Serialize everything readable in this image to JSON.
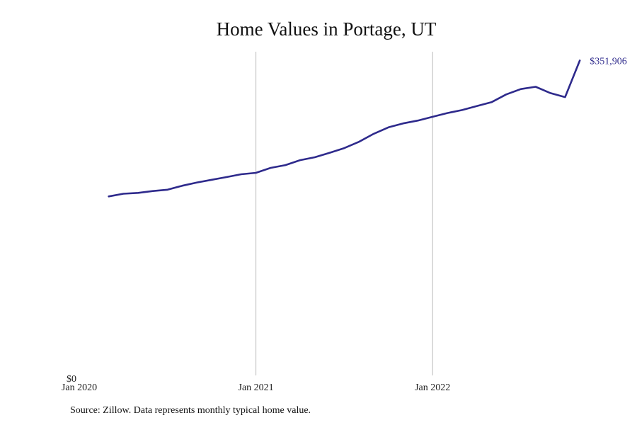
{
  "chart_data": {
    "type": "line",
    "title": "Home Values in Portage, UT",
    "xlabel": "",
    "ylabel": "",
    "y_tick_labels": [
      "$0"
    ],
    "x_tick_labels": [
      "Jan 2020",
      "Jan 2021",
      "Jan 2022"
    ],
    "xlim": [
      "2020-01",
      "2022-12"
    ],
    "ylim": [
      0,
      372000
    ],
    "grid": "vertical lines at year marks",
    "legend": "none",
    "line_color": "#2e2a8c",
    "end_label": "$351,906",
    "series": [
      {
        "x": [
          "2020-03",
          "2020-04",
          "2020-05",
          "2020-06",
          "2020-07",
          "2020-08",
          "2020-09",
          "2020-10",
          "2020-11",
          "2020-12",
          "2021-01",
          "2021-02",
          "2021-03",
          "2021-04",
          "2021-05",
          "2021-06",
          "2021-07",
          "2021-08",
          "2021-09",
          "2021-10",
          "2021-11",
          "2021-12",
          "2022-01",
          "2022-02",
          "2022-03",
          "2022-04",
          "2022-05",
          "2022-06",
          "2022-07",
          "2022-08",
          "2022-09",
          "2022-10",
          "2022-11"
        ],
        "values": [
          200000,
          203000,
          204000,
          206000,
          207500,
          212000,
          215600,
          218600,
          221600,
          224800,
          226400,
          231900,
          235000,
          240500,
          243800,
          248800,
          254000,
          261000,
          270000,
          277200,
          281600,
          284800,
          289000,
          293200,
          296500,
          301000,
          305300,
          314000,
          320000,
          322500,
          315500,
          311000,
          351906
        ]
      }
    ]
  },
  "source_note": "Source: Zillow. Data represents monthly typical home value."
}
